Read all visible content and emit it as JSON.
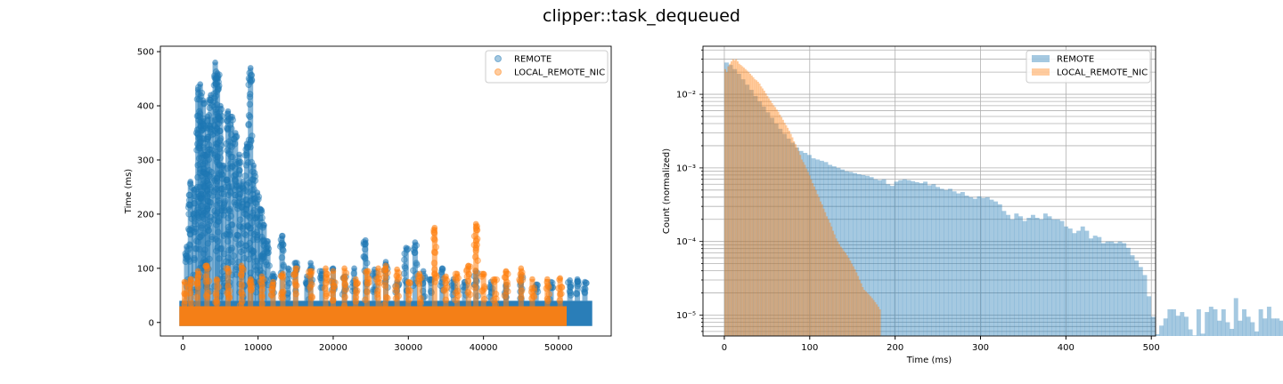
{
  "figure": {
    "title": "clipper::task_dequeued"
  },
  "chart_data": [
    {
      "type": "scatter",
      "title": "",
      "xlabel": "",
      "ylabel": "Time (ms)",
      "xlim": [
        -3000,
        57000
      ],
      "ylim": [
        -25,
        510
      ],
      "xticks": [
        0,
        10000,
        20000,
        30000,
        40000,
        50000
      ],
      "xtick_labels": [
        "0",
        "10000",
        "20000",
        "30000",
        "40000",
        "50000"
      ],
      "yticks": [
        0,
        100,
        200,
        300,
        400,
        500
      ],
      "ytick_labels": [
        "0",
        "100",
        "200",
        "300",
        "400",
        "500"
      ],
      "grid": false,
      "legend_position": "top-right",
      "series": [
        {
          "name": "REMOTE",
          "color": "#1f77b4",
          "alpha": 0.4,
          "x_range": [
            0,
            54000
          ],
          "bulk_max": 40,
          "spikes": [
            {
              "x": 500,
              "y": 140
            },
            {
              "x": 1000,
              "y": 260
            },
            {
              "x": 1500,
              "y": 245
            },
            {
              "x": 2000,
              "y": 430
            },
            {
              "x": 2300,
              "y": 440
            },
            {
              "x": 2700,
              "y": 410
            },
            {
              "x": 3000,
              "y": 310
            },
            {
              "x": 3300,
              "y": 380
            },
            {
              "x": 3700,
              "y": 420
            },
            {
              "x": 4300,
              "y": 480
            },
            {
              "x": 4600,
              "y": 460
            },
            {
              "x": 5000,
              "y": 400
            },
            {
              "x": 5400,
              "y": 290
            },
            {
              "x": 6000,
              "y": 390
            },
            {
              "x": 6400,
              "y": 380
            },
            {
              "x": 7000,
              "y": 350
            },
            {
              "x": 7500,
              "y": 310
            },
            {
              "x": 8000,
              "y": 260
            },
            {
              "x": 8500,
              "y": 330
            },
            {
              "x": 9000,
              "y": 470
            },
            {
              "x": 9400,
              "y": 290
            },
            {
              "x": 9900,
              "y": 240
            },
            {
              "x": 10300,
              "y": 210
            },
            {
              "x": 10800,
              "y": 180
            },
            {
              "x": 11300,
              "y": 150
            },
            {
              "x": 12000,
              "y": 90
            },
            {
              "x": 13200,
              "y": 160
            },
            {
              "x": 14000,
              "y": 100
            },
            {
              "x": 15000,
              "y": 110
            },
            {
              "x": 16500,
              "y": 85
            },
            {
              "x": 17000,
              "y": 110
            },
            {
              "x": 18500,
              "y": 95
            },
            {
              "x": 20000,
              "y": 100
            },
            {
              "x": 21500,
              "y": 85
            },
            {
              "x": 22800,
              "y": 100
            },
            {
              "x": 24300,
              "y": 152
            },
            {
              "x": 25500,
              "y": 98
            },
            {
              "x": 27000,
              "y": 112
            },
            {
              "x": 28500,
              "y": 75
            },
            {
              "x": 29700,
              "y": 138
            },
            {
              "x": 30900,
              "y": 148
            },
            {
              "x": 32000,
              "y": 95
            },
            {
              "x": 33000,
              "y": 80
            },
            {
              "x": 34500,
              "y": 100
            },
            {
              "x": 36000,
              "y": 80
            },
            {
              "x": 37500,
              "y": 75
            },
            {
              "x": 39000,
              "y": 95
            },
            {
              "x": 41000,
              "y": 75
            },
            {
              "x": 43000,
              "y": 70
            },
            {
              "x": 45000,
              "y": 85
            },
            {
              "x": 47000,
              "y": 70
            },
            {
              "x": 49000,
              "y": 75
            },
            {
              "x": 51500,
              "y": 78
            },
            {
              "x": 52500,
              "y": 80
            },
            {
              "x": 53500,
              "y": 75
            }
          ]
        },
        {
          "name": "LOCAL_REMOTE_NIC",
          "color": "#ff7f0e",
          "alpha": 0.4,
          "x_range": [
            0,
            50600
          ],
          "bulk_max": 30,
          "spikes": [
            {
              "x": 200,
              "y": 75
            },
            {
              "x": 1000,
              "y": 80
            },
            {
              "x": 2000,
              "y": 95
            },
            {
              "x": 3200,
              "y": 105
            },
            {
              "x": 4500,
              "y": 80
            },
            {
              "x": 6000,
              "y": 100
            },
            {
              "x": 7800,
              "y": 105
            },
            {
              "x": 9000,
              "y": 80
            },
            {
              "x": 10500,
              "y": 85
            },
            {
              "x": 12000,
              "y": 75
            },
            {
              "x": 13300,
              "y": 90
            },
            {
              "x": 15000,
              "y": 100
            },
            {
              "x": 17000,
              "y": 95
            },
            {
              "x": 19000,
              "y": 100
            },
            {
              "x": 20000,
              "y": 95
            },
            {
              "x": 21500,
              "y": 100
            },
            {
              "x": 23000,
              "y": 80
            },
            {
              "x": 24500,
              "y": 95
            },
            {
              "x": 26000,
              "y": 100
            },
            {
              "x": 27000,
              "y": 105
            },
            {
              "x": 28500,
              "y": 98
            },
            {
              "x": 30000,
              "y": 75
            },
            {
              "x": 31500,
              "y": 90
            },
            {
              "x": 33500,
              "y": 175
            },
            {
              "x": 35000,
              "y": 85
            },
            {
              "x": 36500,
              "y": 90
            },
            {
              "x": 38000,
              "y": 105
            },
            {
              "x": 39000,
              "y": 182
            },
            {
              "x": 40000,
              "y": 90
            },
            {
              "x": 41500,
              "y": 80
            },
            {
              "x": 43000,
              "y": 95
            },
            {
              "x": 45000,
              "y": 100
            },
            {
              "x": 46500,
              "y": 80
            },
            {
              "x": 48500,
              "y": 80
            },
            {
              "x": 50200,
              "y": 82
            }
          ]
        }
      ]
    },
    {
      "type": "bar",
      "subtype": "histogram",
      "title": "",
      "xlabel": "Time (ms)",
      "ylabel": "Count (normalized)",
      "yscale": "log",
      "xlim": [
        -25,
        505
      ],
      "ylim": [
        5.2e-06,
        0.045
      ],
      "xticks": [
        0,
        100,
        200,
        300,
        400,
        500
      ],
      "xtick_labels": [
        "0",
        "100",
        "200",
        "300",
        "400",
        "500"
      ],
      "yticks": [
        1e-05,
        0.0001,
        0.001,
        0.01
      ],
      "ytick_labels": [
        "10⁻⁵",
        "10⁻⁴",
        "10⁻³",
        "10⁻²"
      ],
      "grid": true,
      "legend_position": "top-right",
      "series": [
        {
          "name": "REMOTE",
          "color": "#1f77b4",
          "alpha": 0.4,
          "bin_edges_start": 0,
          "bin_width": 4.85,
          "values": [
            0.027,
            0.025,
            0.022,
            0.019,
            0.016,
            0.0135,
            0.0115,
            0.0095,
            0.008,
            0.0068,
            0.0057,
            0.0048,
            0.004,
            0.0034,
            0.0029,
            0.0025,
            0.0022,
            0.0019,
            0.0017,
            0.0016,
            0.0015,
            0.00135,
            0.0013,
            0.00125,
            0.0012,
            0.0011,
            0.00105,
            0.001,
            0.00095,
            0.0009,
            0.00088,
            0.00085,
            0.00082,
            0.0008,
            0.00078,
            0.00075,
            0.0007,
            0.00068,
            0.0007,
            0.0006,
            0.00057,
            0.00065,
            0.00068,
            0.0007,
            0.00068,
            0.00066,
            0.00064,
            0.00062,
            0.00065,
            0.00058,
            0.0006,
            0.00055,
            0.00052,
            0.0005,
            0.00052,
            0.00048,
            0.00045,
            0.00047,
            0.00042,
            0.0004,
            0.00038,
            0.00041,
            0.00039,
            0.0004,
            0.00037,
            0.00035,
            0.00032,
            0.00026,
            0.00023,
            0.0002,
            0.00024,
            0.00022,
            0.00019,
            0.00021,
            0.00023,
            0.00021,
            0.0002,
            0.00024,
            0.00022,
            0.0002,
            0.0002,
            0.00019,
            0.00016,
            0.00015,
            0.00013,
            0.00014,
            0.00016,
            0.00014,
            0.00011,
            0.00012,
            0.000115,
            9.5e-05,
            0.0001,
            0.0001,
            9.5e-05,
            0.0001,
            9.5e-05,
            8.2e-05,
            6.5e-05,
            5.5e-05,
            4.5e-05,
            3.5e-05,
            1.8e-05,
            9.5e-06,
            5.5e-06,
            7.2e-06,
            9e-06,
            1.2e-05,
            1.2e-05,
            9.8e-06,
            1.1e-05,
            9.5e-06,
            6.4e-06,
            5.3e-06,
            1.2e-05,
            5.6e-06,
            1.1e-05,
            1.3e-05,
            1.2e-05,
            8.4e-06,
            1.2e-05,
            8e-06,
            6.5e-06,
            1.7e-05,
            8.4e-06,
            1.2e-05,
            9.5e-06,
            8e-06,
            6e-06,
            1.2e-05,
            9e-06,
            1.3e-05,
            9e-06,
            9e-06,
            8.4e-06,
            6.5e-06
          ]
        },
        {
          "name": "LOCAL_REMOTE_NIC",
          "color": "#ff7f0e",
          "alpha": 0.4,
          "bin_edges_start": 0,
          "bin_width": 1.83,
          "values": [
            0.022,
            0.02,
            0.024,
            0.026,
            0.028,
            0.03,
            0.029,
            0.03,
            0.028,
            0.026,
            0.025,
            0.024,
            0.023,
            0.022,
            0.021,
            0.02,
            0.019,
            0.018,
            0.017,
            0.016,
            0.0155,
            0.0148,
            0.014,
            0.0128,
            0.012,
            0.0112,
            0.0103,
            0.0095,
            0.0088,
            0.0082,
            0.0076,
            0.0071,
            0.0067,
            0.0062,
            0.0058,
            0.0053,
            0.0049,
            0.0045,
            0.0041,
            0.0038,
            0.0035,
            0.0032,
            0.0029,
            0.0026,
            0.0023,
            0.0021,
            0.0019,
            0.0017,
            0.0015,
            0.0013,
            0.0012,
            0.0011,
            0.00098,
            0.00088,
            0.00079,
            0.0007,
            0.00062,
            0.00056,
            0.0005,
            0.00044,
            0.0004,
            0.00035,
            0.00032,
            0.00028,
            0.00025,
            0.00022,
            0.0002,
            0.00018,
            0.00016,
            0.00014,
            0.000125,
            0.00011,
            0.0001,
            9.2e-05,
            8.5e-05,
            8e-05,
            7.4e-05,
            7e-05,
            6.5e-05,
            6e-05,
            5.5e-05,
            5e-05,
            4.6e-05,
            4.2e-05,
            3.8e-05,
            3.4e-05,
            3e-05,
            2.7e-05,
            2.4e-05,
            2.2e-05,
            2.1e-05,
            2e-05,
            1.9e-05,
            1.8e-05,
            1.7e-05,
            1.6e-05,
            1.5e-05,
            1.4e-05,
            1.3e-05,
            1.2e-05
          ]
        }
      ]
    }
  ]
}
